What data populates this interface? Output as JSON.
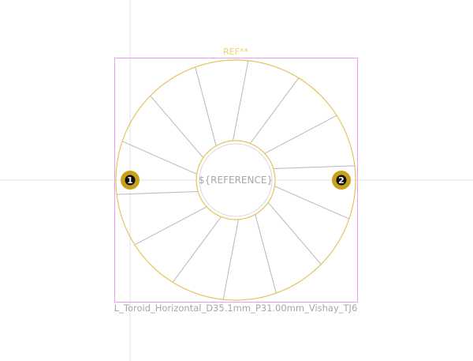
{
  "footprint": {
    "ref_designator": "REF**",
    "reference_placeholder": "${REFERENCE}",
    "footprint_name": "L_Toroid_Horizontal_D35.1mm_P31.00mm_Vishay_TJ6"
  },
  "pads": [
    {
      "number": "1"
    },
    {
      "number": "2"
    }
  ],
  "colors": {
    "courtyard": "#f09bf0",
    "fab_outline": "#e2c55a",
    "silk_text": "#f0d070",
    "pad_fill": "#c8a01a",
    "pad_number": "#111111",
    "winding_lines": "#b8b8b8",
    "crosshair": "#e3e3e3",
    "fab_text": "#a6a6a6"
  },
  "winding_count": 14
}
